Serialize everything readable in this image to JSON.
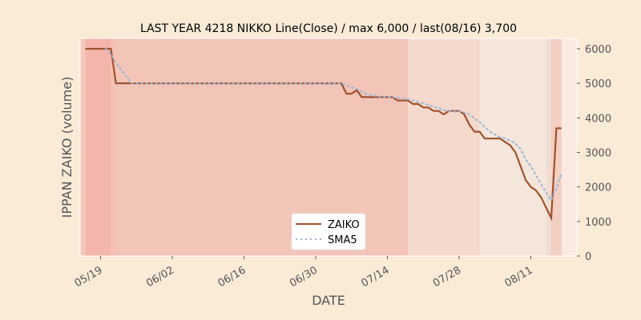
{
  "chart_data": {
    "type": "line",
    "title": "LAST YEAR 4218 NIKKO Line(Close) / max 6,000 / last(08/16) 3,700",
    "xlabel": "DATE",
    "ylabel": "IPPAN ZAIKO (volume)",
    "x_domain": [
      "2019-05-15",
      "2019-08-20"
    ],
    "ylim": [
      0,
      6300
    ],
    "x_ticks": [
      {
        "date": "2019-05-19",
        "label": "05/19"
      },
      {
        "date": "2019-06-02",
        "label": "06/02"
      },
      {
        "date": "2019-06-16",
        "label": "06/16"
      },
      {
        "date": "2019-06-30",
        "label": "06/30"
      },
      {
        "date": "2019-07-14",
        "label": "07/14"
      },
      {
        "date": "2019-07-28",
        "label": "07/28"
      },
      {
        "date": "2019-08-11",
        "label": "08/11"
      }
    ],
    "y_ticks": [
      0,
      1000,
      2000,
      3000,
      4000,
      5000,
      6000
    ],
    "y_tick_labels": [
      "0",
      "1000",
      "2000",
      "3000",
      "4000",
      "5000",
      "6000"
    ],
    "legend": {
      "position": "bottom-center"
    },
    "grid": false,
    "series": [
      {
        "name": "ZAIKO",
        "color": "#a0522d",
        "style": "solid",
        "points": [
          [
            "2019-05-16",
            6000
          ],
          [
            "2019-05-21",
            6000
          ],
          [
            "2019-05-22",
            5000
          ],
          [
            "2019-05-23",
            5000
          ],
          [
            "2019-05-24",
            5000
          ],
          [
            "2019-05-27",
            5000
          ],
          [
            "2019-05-28",
            5000
          ],
          [
            "2019-05-29",
            5000
          ],
          [
            "2019-05-30",
            5000
          ],
          [
            "2019-05-31",
            5000
          ],
          [
            "2019-06-03",
            5000
          ],
          [
            "2019-06-04",
            5000
          ],
          [
            "2019-06-05",
            5000
          ],
          [
            "2019-06-06",
            5000
          ],
          [
            "2019-06-07",
            5000
          ],
          [
            "2019-06-10",
            5000
          ],
          [
            "2019-06-11",
            5000
          ],
          [
            "2019-06-12",
            5000
          ],
          [
            "2019-06-13",
            5000
          ],
          [
            "2019-06-14",
            5000
          ],
          [
            "2019-06-17",
            5000
          ],
          [
            "2019-06-18",
            5000
          ],
          [
            "2019-06-19",
            5000
          ],
          [
            "2019-06-20",
            5000
          ],
          [
            "2019-06-21",
            5000
          ],
          [
            "2019-06-24",
            5000
          ],
          [
            "2019-06-25",
            5000
          ],
          [
            "2019-06-26",
            5000
          ],
          [
            "2019-06-27",
            5000
          ],
          [
            "2019-06-28",
            5000
          ],
          [
            "2019-07-01",
            5000
          ],
          [
            "2019-07-02",
            5000
          ],
          [
            "2019-07-03",
            5000
          ],
          [
            "2019-07-04",
            5000
          ],
          [
            "2019-07-05",
            5000
          ],
          [
            "2019-07-06",
            4700
          ],
          [
            "2019-07-07",
            4700
          ],
          [
            "2019-07-08",
            4800
          ],
          [
            "2019-07-09",
            4600
          ],
          [
            "2019-07-10",
            4600
          ],
          [
            "2019-07-11",
            4600
          ],
          [
            "2019-07-12",
            4600
          ],
          [
            "2019-07-13",
            4600
          ],
          [
            "2019-07-14",
            4600
          ],
          [
            "2019-07-15",
            4600
          ],
          [
            "2019-07-16",
            4500
          ],
          [
            "2019-07-17",
            4500
          ],
          [
            "2019-07-18",
            4500
          ],
          [
            "2019-07-19",
            4400
          ],
          [
            "2019-07-20",
            4400
          ],
          [
            "2019-07-21",
            4300
          ],
          [
            "2019-07-22",
            4300
          ],
          [
            "2019-07-23",
            4200
          ],
          [
            "2019-07-24",
            4200
          ],
          [
            "2019-07-25",
            4100
          ],
          [
            "2019-07-26",
            4200
          ],
          [
            "2019-07-27",
            4200
          ],
          [
            "2019-07-28",
            4200
          ],
          [
            "2019-07-29",
            4100
          ],
          [
            "2019-07-30",
            3800
          ],
          [
            "2019-07-31",
            3600
          ],
          [
            "2019-08-01",
            3600
          ],
          [
            "2019-08-02",
            3400
          ],
          [
            "2019-08-03",
            3400
          ],
          [
            "2019-08-04",
            3400
          ],
          [
            "2019-08-05",
            3400
          ],
          [
            "2019-08-06",
            3300
          ],
          [
            "2019-08-07",
            3200
          ],
          [
            "2019-08-08",
            3000
          ],
          [
            "2019-08-09",
            2600
          ],
          [
            "2019-08-10",
            2200
          ],
          [
            "2019-08-11",
            2000
          ],
          [
            "2019-08-12",
            1900
          ],
          [
            "2019-08-13",
            1700
          ],
          [
            "2019-08-14",
            1400
          ],
          [
            "2019-08-15",
            1100
          ],
          [
            "2019-08-16",
            3700
          ],
          [
            "2019-08-17",
            3700
          ]
        ]
      },
      {
        "name": "SMA5",
        "color": "#9ab6d6",
        "style": "dotted",
        "points": [
          [
            "2019-05-20",
            6000
          ],
          [
            "2019-05-21",
            5850
          ],
          [
            "2019-05-22",
            5600
          ],
          [
            "2019-05-23",
            5400
          ],
          [
            "2019-05-24",
            5200
          ],
          [
            "2019-05-25",
            5000
          ],
          [
            "2019-06-01",
            5000
          ],
          [
            "2019-06-15",
            5000
          ],
          [
            "2019-06-29",
            5000
          ],
          [
            "2019-07-05",
            5000
          ],
          [
            "2019-07-06",
            4940
          ],
          [
            "2019-07-07",
            4880
          ],
          [
            "2019-07-08",
            4840
          ],
          [
            "2019-07-09",
            4760
          ],
          [
            "2019-07-10",
            4680
          ],
          [
            "2019-07-11",
            4660
          ],
          [
            "2019-07-12",
            4620
          ],
          [
            "2019-07-15",
            4600
          ],
          [
            "2019-07-16",
            4580
          ],
          [
            "2019-07-17",
            4560
          ],
          [
            "2019-07-18",
            4540
          ],
          [
            "2019-07-19",
            4500
          ],
          [
            "2019-07-20",
            4460
          ],
          [
            "2019-07-21",
            4420
          ],
          [
            "2019-07-22",
            4380
          ],
          [
            "2019-07-23",
            4320
          ],
          [
            "2019-07-24",
            4280
          ],
          [
            "2019-07-25",
            4220
          ],
          [
            "2019-07-26",
            4200
          ],
          [
            "2019-07-27",
            4180
          ],
          [
            "2019-07-28",
            4180
          ],
          [
            "2019-07-29",
            4160
          ],
          [
            "2019-07-30",
            4100
          ],
          [
            "2019-07-31",
            3980
          ],
          [
            "2019-08-01",
            3880
          ],
          [
            "2019-08-02",
            3740
          ],
          [
            "2019-08-03",
            3600
          ],
          [
            "2019-08-04",
            3520
          ],
          [
            "2019-08-05",
            3440
          ],
          [
            "2019-08-06",
            3400
          ],
          [
            "2019-08-07",
            3340
          ],
          [
            "2019-08-08",
            3260
          ],
          [
            "2019-08-09",
            3100
          ],
          [
            "2019-08-10",
            2800
          ],
          [
            "2019-08-11",
            2600
          ],
          [
            "2019-08-12",
            2340
          ],
          [
            "2019-08-13",
            2080
          ],
          [
            "2019-08-14",
            1840
          ],
          [
            "2019-08-15",
            1620
          ],
          [
            "2019-08-16",
            1980
          ],
          [
            "2019-08-17",
            2380
          ]
        ]
      }
    ],
    "bands": [
      {
        "start": "2019-05-15",
        "end": "2019-05-16",
        "color": "#f6c8bc"
      },
      {
        "start": "2019-05-16",
        "end": "2019-05-21",
        "color": "#f4b5aa"
      },
      {
        "start": "2019-05-21",
        "end": "2019-05-22",
        "color": "#f5c0b5"
      },
      {
        "start": "2019-05-22",
        "end": "2019-07-18",
        "color": "#f2c5b8"
      },
      {
        "start": "2019-07-18",
        "end": "2019-08-01",
        "color": "#f5d9cd"
      },
      {
        "start": "2019-08-01",
        "end": "2019-08-14",
        "color": "#f4e6db"
      },
      {
        "start": "2019-08-14",
        "end": "2019-08-15",
        "color": "#f0dcd0"
      },
      {
        "start": "2019-08-15",
        "end": "2019-08-17",
        "color": "#f3cfc3"
      },
      {
        "start": "2019-08-17",
        "end": "2019-08-20",
        "color": "#f9ebe2"
      }
    ]
  }
}
